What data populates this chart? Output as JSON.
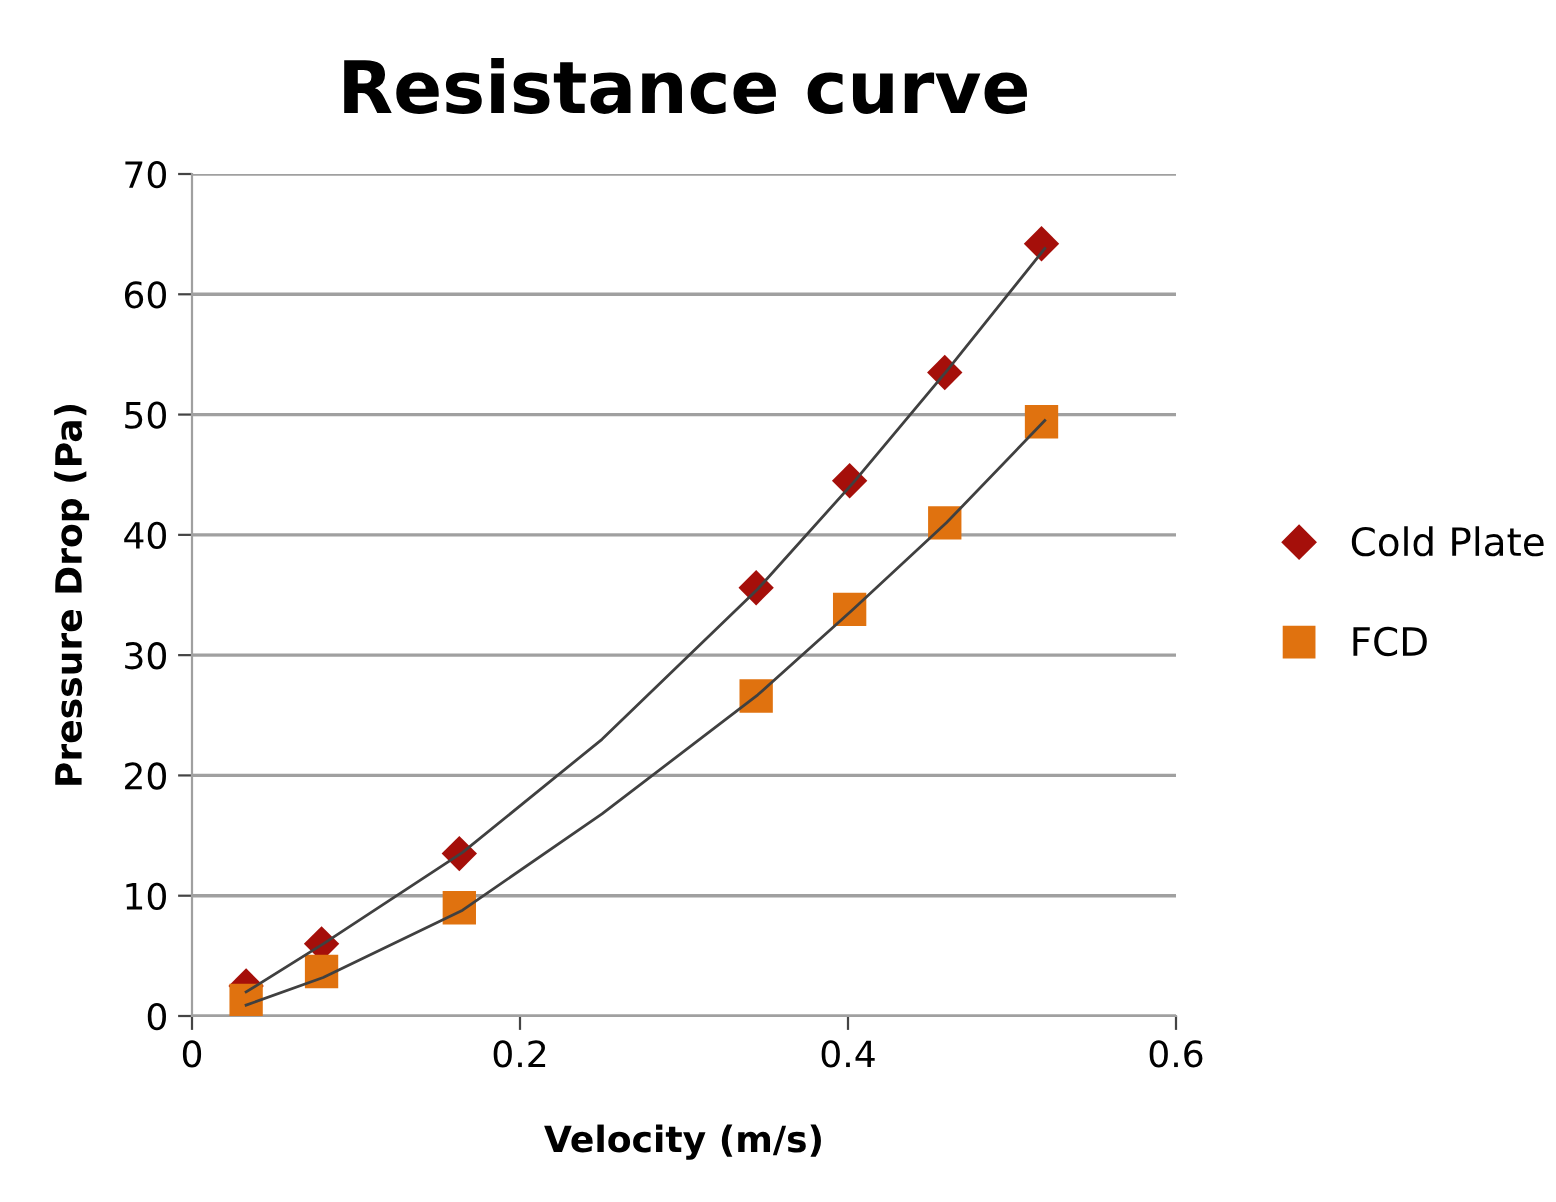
{
  "chart_data": {
    "type": "scatter",
    "title": "Resistance curve",
    "xlabel": "Velocity (m/s)",
    "ylabel": "Pressure Drop (Pa)",
    "xlim": [
      0,
      0.6
    ],
    "xticks": [
      {
        "value": 0,
        "label": "0"
      },
      0.2,
      0.4,
      0.6
    ],
    "ylim": [
      0,
      70
    ],
    "yticks": [
      0,
      10,
      20,
      30,
      40,
      50,
      60,
      70
    ],
    "grid": "y",
    "legend": "right",
    "series": [
      {
        "name": "Cold Plate",
        "color": "#a50f0a",
        "marker": "diamond",
        "x": [
          0.033,
          0.079,
          0.163,
          0.344,
          0.401,
          0.459,
          0.518
        ],
        "values": [
          2.5,
          6,
          13.5,
          35.6,
          44.5,
          53.5,
          64.2
        ]
      },
      {
        "name": "FCD",
        "color": "#e0720f",
        "marker": "square",
        "x": [
          0.033,
          0.079,
          0.163,
          0.344,
          0.401,
          0.459,
          0.518
        ],
        "values": [
          1.3,
          3.7,
          9,
          26.6,
          33.8,
          41,
          49.4
        ]
      },
      {
        "type": "line",
        "color": "#404040",
        "marker": "none",
        "x": [
          0.033,
          0.08,
          0.165,
          0.25,
          0.345,
          0.403,
          0.46,
          0.52
        ],
        "values": [
          2.0,
          6,
          13.6,
          23,
          35.5,
          44.3,
          53.6,
          63.8
        ]
      },
      {
        "type": "line",
        "color": "#404040",
        "marker": "none",
        "x": [
          0.033,
          0.08,
          0.165,
          0.25,
          0.345,
          0.403,
          0.46,
          0.52
        ],
        "values": [
          0.9,
          3.2,
          8.8,
          16.8,
          26.7,
          33.8,
          41,
          49.5
        ]
      }
    ]
  }
}
